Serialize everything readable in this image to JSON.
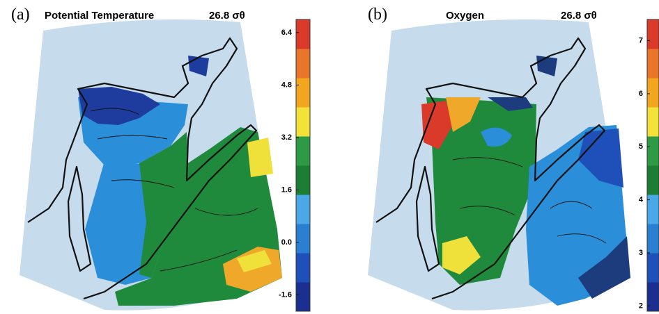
{
  "panels": [
    {
      "label": "(a)",
      "title": "Potential Temperature",
      "surface": "26.8 σθ",
      "colorbar": {
        "lim": [
          -2.1,
          6.8
        ],
        "ticks": [
          6.4,
          4.8,
          3.2,
          1.6,
          {
            "value": 0,
            "label": "0.0"
          },
          -1.6
        ],
        "colors": [
          "#1a2f8f",
          "#1f4fb8",
          "#2a7fd0",
          "#4ba8e6",
          "#1e7d35",
          "#2f9a45",
          "#f2e23a",
          "#f2a51f",
          "#e8752a",
          "#d93a2a"
        ]
      }
    },
    {
      "label": "(b)",
      "title": "Oxygen",
      "surface": "26.8 σθ",
      "colorbar": {
        "lim": [
          1.9,
          7.4
        ],
        "ticks": [
          7,
          6,
          5,
          4,
          3,
          2
        ],
        "colors": [
          "#1a2f8f",
          "#1f4fb8",
          "#2a7fd0",
          "#4ba8e6",
          "#1e7d35",
          "#2f9a45",
          "#f2e23a",
          "#f2a51f",
          "#e8752a",
          "#d93a2a"
        ]
      }
    }
  ]
}
